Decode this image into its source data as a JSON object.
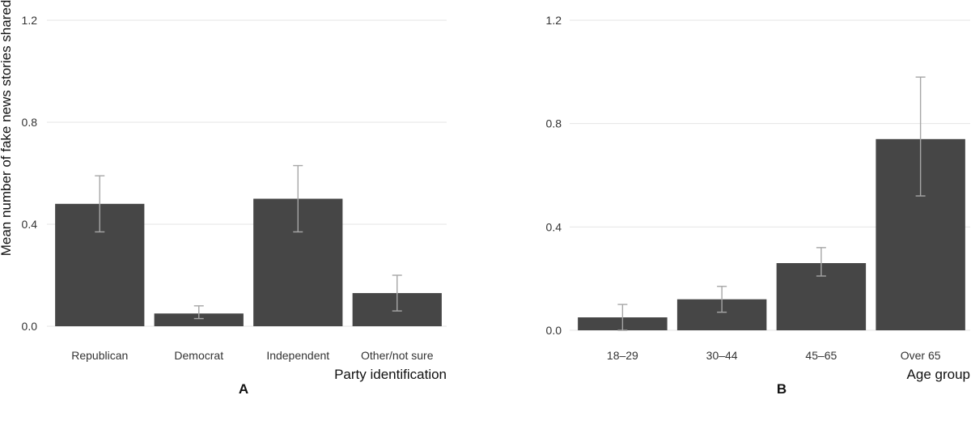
{
  "chart_data": [
    {
      "type": "bar",
      "panel": "A",
      "xlabel": "Party identification",
      "ylabel": "Mean number of fake news stories shared",
      "ylim": [
        0,
        1.2
      ],
      "yticks": [
        "0.0",
        "0.4",
        "0.8",
        "1.2"
      ],
      "grid": true,
      "categories": [
        "Republican",
        "Democrat",
        "Independent",
        "Other/not sure"
      ],
      "values": [
        0.48,
        0.05,
        0.5,
        0.13
      ],
      "error_low": [
        0.37,
        0.03,
        0.37,
        0.06
      ],
      "error_high": [
        0.59,
        0.08,
        0.63,
        0.2
      ]
    },
    {
      "type": "bar",
      "panel": "B",
      "xlabel": "Age group",
      "ylabel": "",
      "ylim": [
        0,
        1.2
      ],
      "yticks": [
        "0.0",
        "0.4",
        "0.8",
        "1.2"
      ],
      "grid": true,
      "categories": [
        "18–29",
        "30–44",
        "45–65",
        "Over 65"
      ],
      "values": [
        0.05,
        0.12,
        0.26,
        0.74
      ],
      "error_low": [
        0.0,
        0.07,
        0.21,
        0.52
      ],
      "error_high": [
        0.1,
        0.17,
        0.32,
        0.98
      ]
    }
  ],
  "colors": {
    "bar": "#464646",
    "errorbar": "#a6a6a6",
    "grid": "#e4e4e4"
  }
}
